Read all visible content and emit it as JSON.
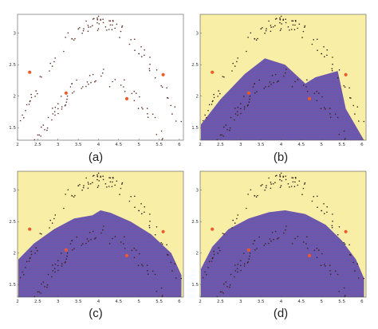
{
  "chart_data": [
    {
      "type": "scatter",
      "panel_label": "(a)",
      "xlim": [
        2,
        6.1
      ],
      "ylim": [
        1.3,
        3.3
      ],
      "x_ticks": [
        2,
        2.5,
        3,
        3.5,
        4,
        4.5,
        5,
        5.5,
        6
      ],
      "y_ticks": [
        1.5,
        2,
        2.5,
        3
      ],
      "x_tick_labels": [
        "2",
        "2.5",
        "3",
        "3.5",
        "4",
        "4.5",
        "5",
        "5.5",
        "6"
      ],
      "y_tick_labels": [
        "1.5",
        "2",
        "2.5",
        "3"
      ],
      "background": "#ffffff",
      "region": null,
      "series": [
        {
          "shape": "arc",
          "peak_x": 4.05,
          "peak_y": 3.15,
          "curvature": 0.42,
          "band_width": 0.13,
          "x_range": [
            2.05,
            6.05
          ],
          "count": 95,
          "color": "#5a2a20"
        },
        {
          "shape": "arc",
          "peak_x": 4.05,
          "peak_y": 2.3,
          "curvature": 0.42,
          "band_width": 0.13,
          "x_range": [
            2.05,
            6.05
          ],
          "count": 95,
          "color": "#5a2a20"
        }
      ],
      "highlight_points": [
        {
          "x": 2.3,
          "y": 2.38
        },
        {
          "x": 3.2,
          "y": 2.05
        },
        {
          "x": 4.7,
          "y": 1.96
        },
        {
          "x": 5.6,
          "y": 2.34
        }
      ],
      "highlight_color": "#ee5a2a"
    },
    {
      "type": "scatter",
      "panel_label": "(b)",
      "xlim": [
        2,
        6.1
      ],
      "ylim": [
        1.3,
        3.3
      ],
      "x_ticks": [
        2,
        2.5,
        3,
        3.5,
        4,
        4.5,
        5,
        5.5,
        6
      ],
      "y_ticks": [
        1.5,
        2,
        2.5,
        3
      ],
      "x_tick_labels": [
        "2",
        "2.5",
        "3",
        "3.5",
        "4",
        "4.5",
        "5",
        "5.5",
        "6"
      ],
      "y_tick_labels": [
        "1.5",
        "2",
        "2.5",
        "3"
      ],
      "background": "#f8eea6",
      "region": {
        "color": "#5e5fb0",
        "stripe_color": "#7b51a8",
        "boundary": [
          [
            2.02,
            1.55
          ],
          [
            2.5,
            1.95
          ],
          [
            3.1,
            2.35
          ],
          [
            3.6,
            2.6
          ],
          [
            4.1,
            2.5
          ],
          [
            4.6,
            2.2
          ],
          [
            4.85,
            2.3
          ],
          [
            5.4,
            2.4
          ],
          [
            5.6,
            1.8
          ],
          [
            6.05,
            1.3
          ]
        ]
      },
      "series": [
        {
          "shape": "arc",
          "peak_x": 4.05,
          "peak_y": 3.15,
          "curvature": 0.42,
          "band_width": 0.13,
          "x_range": [
            2.05,
            6.05
          ],
          "count": 95,
          "color": "#3a1e18"
        },
        {
          "shape": "arc",
          "peak_x": 4.05,
          "peak_y": 2.3,
          "curvature": 0.42,
          "band_width": 0.13,
          "x_range": [
            2.05,
            6.05
          ],
          "count": 95,
          "color": "#3a1e18"
        }
      ],
      "highlight_points": [
        {
          "x": 2.3,
          "y": 2.38
        },
        {
          "x": 3.2,
          "y": 2.05
        },
        {
          "x": 4.7,
          "y": 1.96
        },
        {
          "x": 5.6,
          "y": 2.34
        }
      ],
      "highlight_color": "#ee5a2a"
    },
    {
      "type": "scatter",
      "panel_label": "(c)",
      "xlim": [
        2,
        6.1
      ],
      "ylim": [
        1.3,
        3.3
      ],
      "x_ticks": [
        2,
        2.5,
        3,
        3.5,
        4,
        4.5,
        5,
        5.5,
        6
      ],
      "y_ticks": [
        1.5,
        2,
        2.5,
        3
      ],
      "x_tick_labels": [
        "2",
        "2.5",
        "3",
        "3.5",
        "4",
        "4.5",
        "5",
        "5.5",
        "6"
      ],
      "y_tick_labels": [
        "1.5",
        "2",
        "2.5",
        "3"
      ],
      "background": "#f8eea6",
      "region": {
        "color": "#5e5fb0",
        "stripe_color": "#7b51a8",
        "boundary": [
          [
            2.02,
            1.9
          ],
          [
            2.4,
            2.15
          ],
          [
            2.9,
            2.38
          ],
          [
            3.4,
            2.55
          ],
          [
            3.85,
            2.6
          ],
          [
            4.05,
            2.68
          ],
          [
            4.3,
            2.64
          ],
          [
            4.8,
            2.5
          ],
          [
            5.3,
            2.3
          ],
          [
            5.8,
            2.0
          ],
          [
            6.05,
            1.65
          ]
        ]
      },
      "series": [
        {
          "shape": "arc",
          "peak_x": 4.05,
          "peak_y": 3.15,
          "curvature": 0.42,
          "band_width": 0.13,
          "x_range": [
            2.05,
            6.05
          ],
          "count": 95,
          "color": "#3a1e18"
        },
        {
          "shape": "arc",
          "peak_x": 4.05,
          "peak_y": 2.3,
          "curvature": 0.42,
          "band_width": 0.13,
          "x_range": [
            2.05,
            6.05
          ],
          "count": 95,
          "color": "#3a1e18"
        }
      ],
      "highlight_points": [
        {
          "x": 2.3,
          "y": 2.38
        },
        {
          "x": 3.2,
          "y": 2.05
        },
        {
          "x": 4.7,
          "y": 1.96
        },
        {
          "x": 5.6,
          "y": 2.34
        }
      ],
      "highlight_color": "#ee5a2a"
    },
    {
      "type": "scatter",
      "panel_label": "(d)",
      "xlim": [
        2,
        6.1
      ],
      "ylim": [
        1.3,
        3.3
      ],
      "x_ticks": [
        2,
        2.5,
        3,
        3.5,
        4,
        4.5,
        5,
        5.5,
        6
      ],
      "y_ticks": [
        1.5,
        2,
        2.5,
        3
      ],
      "x_tick_labels": [
        "2",
        "2.5",
        "3",
        "3.5",
        "4",
        "4.5",
        "5",
        "5.5",
        "6"
      ],
      "y_tick_labels": [
        "1.5",
        "2",
        "2.5",
        "3"
      ],
      "background": "#f8eea6",
      "region": {
        "color": "#5e5fb0",
        "stripe_color": "#7b51a8",
        "boundary": [
          [
            2.02,
            1.75
          ],
          [
            2.3,
            2.1
          ],
          [
            2.7,
            2.38
          ],
          [
            3.2,
            2.55
          ],
          [
            3.7,
            2.65
          ],
          [
            4.1,
            2.68
          ],
          [
            4.6,
            2.62
          ],
          [
            5.1,
            2.45
          ],
          [
            5.5,
            2.2
          ],
          [
            5.85,
            1.9
          ],
          [
            6.05,
            1.6
          ]
        ]
      },
      "series": [
        {
          "shape": "arc",
          "peak_x": 4.05,
          "peak_y": 3.15,
          "curvature": 0.42,
          "band_width": 0.13,
          "x_range": [
            2.05,
            6.05
          ],
          "count": 95,
          "color": "#3a1e18"
        },
        {
          "shape": "arc",
          "peak_x": 4.05,
          "peak_y": 2.3,
          "curvature": 0.42,
          "band_width": 0.13,
          "x_range": [
            2.05,
            6.05
          ],
          "count": 95,
          "color": "#3a1e18"
        }
      ],
      "highlight_points": [
        {
          "x": 2.3,
          "y": 2.38
        },
        {
          "x": 3.2,
          "y": 2.05
        },
        {
          "x": 4.7,
          "y": 1.96
        },
        {
          "x": 5.6,
          "y": 2.34
        }
      ],
      "highlight_color": "#ee5a2a"
    }
  ]
}
